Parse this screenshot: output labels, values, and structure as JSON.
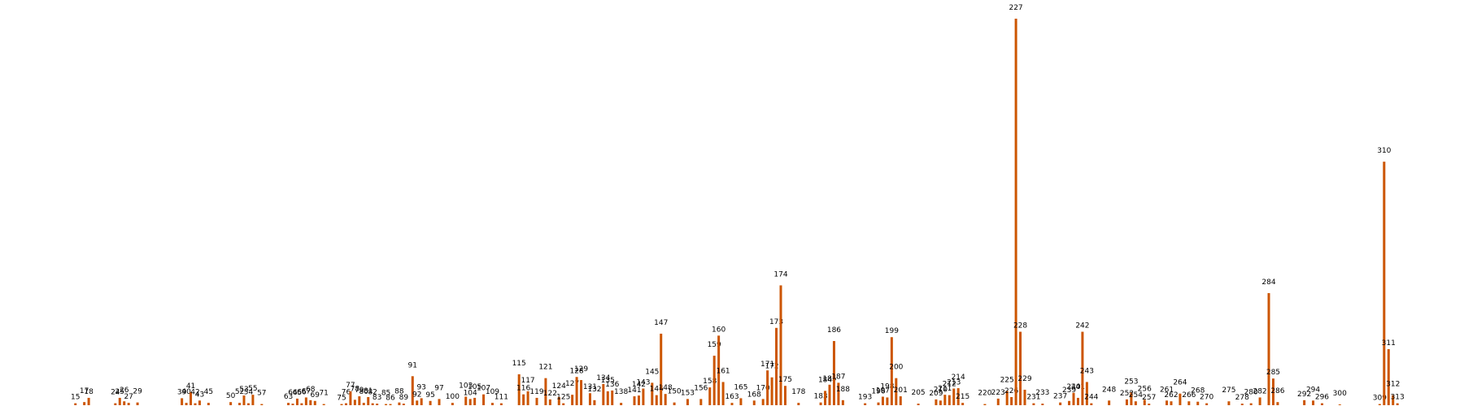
{
  "chart_data": {
    "type": "bar",
    "color": "#cc5500",
    "x": [
      15,
      17,
      18,
      24,
      25,
      26,
      27,
      29,
      39,
      40,
      41,
      42,
      43,
      45,
      50,
      52,
      53,
      54,
      55,
      57,
      63,
      64,
      65,
      66,
      67,
      68,
      69,
      71,
      75,
      76,
      77,
      78,
      79,
      80,
      81,
      82,
      83,
      85,
      86,
      88,
      89,
      91,
      92,
      93,
      95,
      97,
      100,
      103,
      104,
      105,
      107,
      109,
      111,
      115,
      116,
      117,
      119,
      121,
      122,
      124,
      125,
      127,
      128,
      129,
      131,
      132,
      134,
      135,
      136,
      138,
      141,
      142,
      143,
      145,
      146,
      147,
      148,
      150,
      153,
      156,
      158,
      159,
      160,
      161,
      163,
      165,
      168,
      170,
      171,
      172,
      173,
      174,
      175,
      178,
      183,
      184,
      185,
      186,
      187,
      188,
      193,
      196,
      197,
      198,
      199,
      200,
      201,
      205,
      209,
      210,
      211,
      212,
      213,
      214,
      215,
      220,
      223,
      225,
      226,
      227,
      228,
      229,
      231,
      233,
      237,
      239,
      240,
      241,
      242,
      243,
      244,
      248,
      252,
      253,
      254,
      256,
      257,
      261,
      262,
      264,
      266,
      268,
      270,
      275,
      278,
      280,
      282,
      284,
      285,
      286,
      292,
      294,
      296,
      300,
      309,
      310,
      311,
      312,
      313
    ],
    "values": [
      0.5,
      0.8,
      1.9,
      0.5,
      1.9,
      1,
      0.6,
      0.7,
      1.8,
      0.6,
      3.4,
      0.5,
      1.2,
      0.6,
      0.8,
      0.6,
      2.5,
      0.5,
      2.7,
      0.3,
      0.6,
      0.4,
      1.7,
      0.5,
      2,
      1.3,
      1.1,
      0.3,
      0.3,
      0.5,
      3.6,
      1.4,
      2.3,
      0.6,
      2.1,
      0.5,
      0.4,
      0.3,
      0.3,
      0.7,
      0.4,
      7.5,
      1.2,
      1.8,
      1.1,
      1.6,
      0.6,
      2.2,
      1.6,
      1.9,
      2.8,
      0.6,
      0.5,
      8,
      2.8,
      3.6,
      1.9,
      7,
      1.5,
      2.1,
      0.5,
      2.7,
      7.3,
      6.5,
      3.1,
      1.3,
      5.5,
      3.6,
      3.8,
      0.6,
      2.3,
      2.5,
      4.3,
      5.8,
      2.6,
      18.5,
      2.9,
      0.7,
      1.6,
      1.6,
      4.6,
      12.8,
      18,
      6,
      0.6,
      1.8,
      1.2,
      1.6,
      9,
      7.2,
      20,
      31,
      5,
      0.6,
      0.7,
      3.7,
      5.3,
      16.6,
      5.8,
      1.3,
      0.5,
      0.7,
      2.2,
      2,
      17.6,
      7,
      2.3,
      0.4,
      1.5,
      1.2,
      2.7,
      2.6,
      4.3,
      4.4,
      0.6,
      0.3,
      1.7,
      3.7,
      2.1,
      100,
      19,
      4,
      0.5,
      0.4,
      0.7,
      1.1,
      3.2,
      1.9,
      19,
      6,
      0.5,
      1.2,
      1.5,
      3.3,
      1,
      1.4,
      0.4,
      1.2,
      1,
      3,
      1,
      0.9,
      0.5,
      1,
      0.4,
      0.5,
      2,
      29,
      6.9,
      0.8,
      1.3,
      1.2,
      0.5,
      0.2,
      0.3,
      63,
      14.5,
      2.6,
      0.5
    ],
    "xlim": [
      -2,
      328
    ],
    "ylim": [
      0,
      100
    ]
  }
}
